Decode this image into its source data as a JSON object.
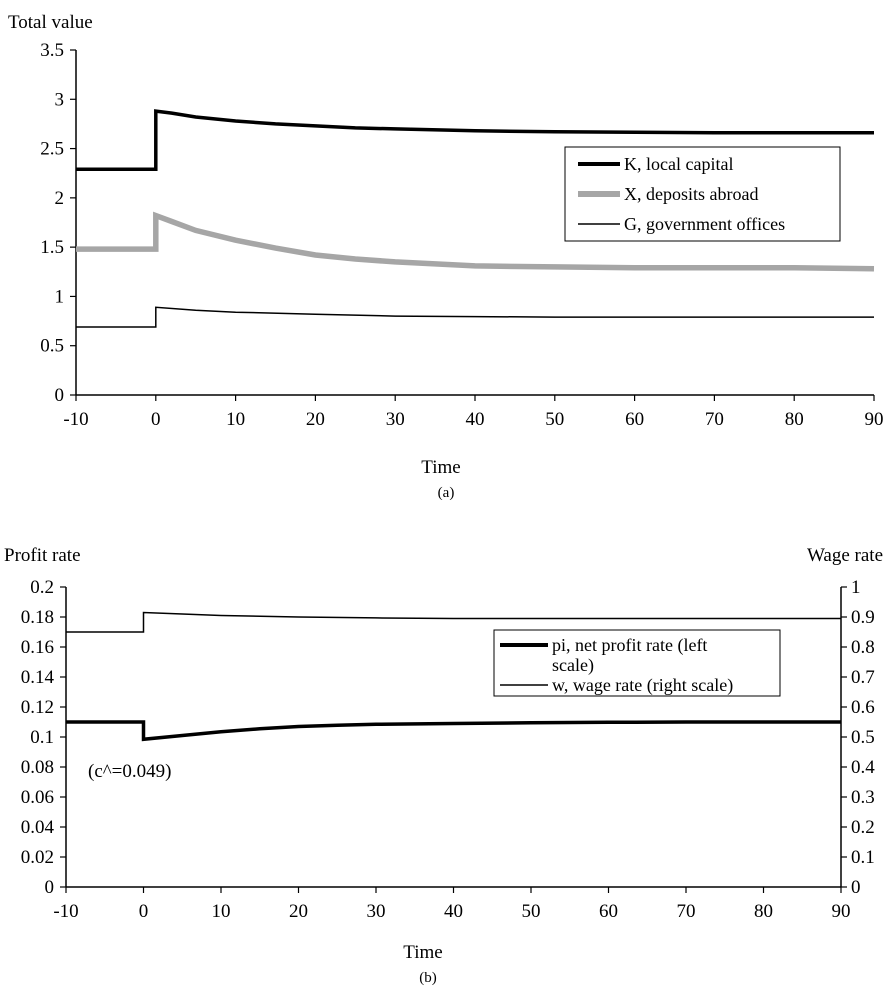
{
  "chart_data": [
    {
      "id": "a",
      "type": "line",
      "panel_caption": "(a)",
      "ylabel": "Total value",
      "xlabel": "Time",
      "xlim": [
        -10,
        90
      ],
      "ylim": [
        0,
        3.5
      ],
      "x_ticks": [
        -10,
        0,
        10,
        20,
        30,
        40,
        50,
        60,
        70,
        80,
        90
      ],
      "y_ticks": [
        0,
        0.5,
        1,
        1.5,
        2,
        2.5,
        3,
        3.5
      ],
      "y_tick_labels": [
        "0",
        "0.5",
        "1",
        "1.5",
        "2",
        "2.5",
        "3",
        "3.5"
      ],
      "legend_position": "center-right",
      "series": [
        {
          "name": "K, local capital",
          "color": "#000000",
          "style": "thick",
          "points": [
            [
              -10,
              2.29
            ],
            [
              0,
              2.29
            ],
            [
              0,
              2.88
            ],
            [
              2,
              2.86
            ],
            [
              5,
              2.82
            ],
            [
              10,
              2.78
            ],
            [
              15,
              2.75
            ],
            [
              20,
              2.73
            ],
            [
              25,
              2.71
            ],
            [
              30,
              2.7
            ],
            [
              40,
              2.68
            ],
            [
              50,
              2.67
            ],
            [
              60,
              2.665
            ],
            [
              70,
              2.66
            ],
            [
              80,
              2.66
            ],
            [
              90,
              2.66
            ]
          ]
        },
        {
          "name": "X, deposits abroad",
          "color": "#a6a6a6",
          "style": "thick-gray",
          "points": [
            [
              -10,
              1.48
            ],
            [
              0,
              1.48
            ],
            [
              0,
              1.82
            ],
            [
              2,
              1.76
            ],
            [
              5,
              1.67
            ],
            [
              10,
              1.57
            ],
            [
              15,
              1.49
            ],
            [
              20,
              1.42
            ],
            [
              25,
              1.38
            ],
            [
              30,
              1.35
            ],
            [
              40,
              1.31
            ],
            [
              50,
              1.3
            ],
            [
              60,
              1.29
            ],
            [
              70,
              1.29
            ],
            [
              80,
              1.29
            ],
            [
              90,
              1.28
            ]
          ]
        },
        {
          "name": "G, government offices",
          "color": "#000000",
          "style": "thin",
          "points": [
            [
              -10,
              0.69
            ],
            [
              0,
              0.69
            ],
            [
              0,
              0.89
            ],
            [
              5,
              0.86
            ],
            [
              10,
              0.84
            ],
            [
              20,
              0.82
            ],
            [
              30,
              0.8
            ],
            [
              40,
              0.795
            ],
            [
              50,
              0.79
            ],
            [
              60,
              0.79
            ],
            [
              70,
              0.79
            ],
            [
              80,
              0.79
            ],
            [
              90,
              0.79
            ]
          ]
        }
      ]
    },
    {
      "id": "b",
      "type": "line",
      "panel_caption": "(b)",
      "ylabel": "Profit rate",
      "y2label": "Wage rate",
      "xlabel": "Time",
      "xlim": [
        -10,
        90
      ],
      "ylim": [
        0,
        0.2
      ],
      "y2lim": [
        0,
        1
      ],
      "x_ticks": [
        -10,
        0,
        10,
        20,
        30,
        40,
        50,
        60,
        70,
        80,
        90
      ],
      "y_ticks": [
        0,
        0.02,
        0.04,
        0.06,
        0.08,
        0.1,
        0.12,
        0.14,
        0.16,
        0.18,
        0.2
      ],
      "y_tick_labels": [
        "0",
        "0.02",
        "0.04",
        "0.06",
        "0.08",
        "0.1",
        "0.12",
        "0.14",
        "0.16",
        "0.18",
        "0.2"
      ],
      "y2_ticks": [
        0,
        0.1,
        0.2,
        0.3,
        0.4,
        0.5,
        0.6,
        0.7,
        0.8,
        0.9,
        1
      ],
      "y2_tick_labels": [
        "0",
        "0.1",
        "0.2",
        "0.3",
        "0.4",
        "0.5",
        "0.6",
        "0.7",
        "0.8",
        "0.9",
        "1"
      ],
      "annotation": "(c^=0.049)",
      "legend_position": "upper-right",
      "series": [
        {
          "name": "pi, net profit rate (left scale)",
          "legend_lines": [
            "pi, net profit rate (left",
            "scale)"
          ],
          "color": "#000000",
          "style": "thick",
          "axis": "left",
          "points": [
            [
              -10,
              0.11
            ],
            [
              0,
              0.11
            ],
            [
              0,
              0.0985
            ],
            [
              5,
              0.101
            ],
            [
              10,
              0.1035
            ],
            [
              15,
              0.1055
            ],
            [
              20,
              0.107
            ],
            [
              25,
              0.1078
            ],
            [
              30,
              0.1085
            ],
            [
              40,
              0.109
            ],
            [
              50,
              0.1095
            ],
            [
              60,
              0.1098
            ],
            [
              70,
              0.11
            ],
            [
              80,
              0.11
            ],
            [
              90,
              0.11
            ]
          ]
        },
        {
          "name": "w, wage rate (right scale)",
          "legend_lines": [
            "w, wage rate (right scale)"
          ],
          "color": "#000000",
          "style": "thin",
          "axis": "right",
          "points": [
            [
              -10,
              0.85
            ],
            [
              0,
              0.85
            ],
            [
              0,
              0.915
            ],
            [
              5,
              0.91
            ],
            [
              10,
              0.905
            ],
            [
              20,
              0.9
            ],
            [
              30,
              0.897
            ],
            [
              40,
              0.895
            ],
            [
              60,
              0.895
            ],
            [
              90,
              0.895
            ]
          ]
        }
      ]
    }
  ]
}
